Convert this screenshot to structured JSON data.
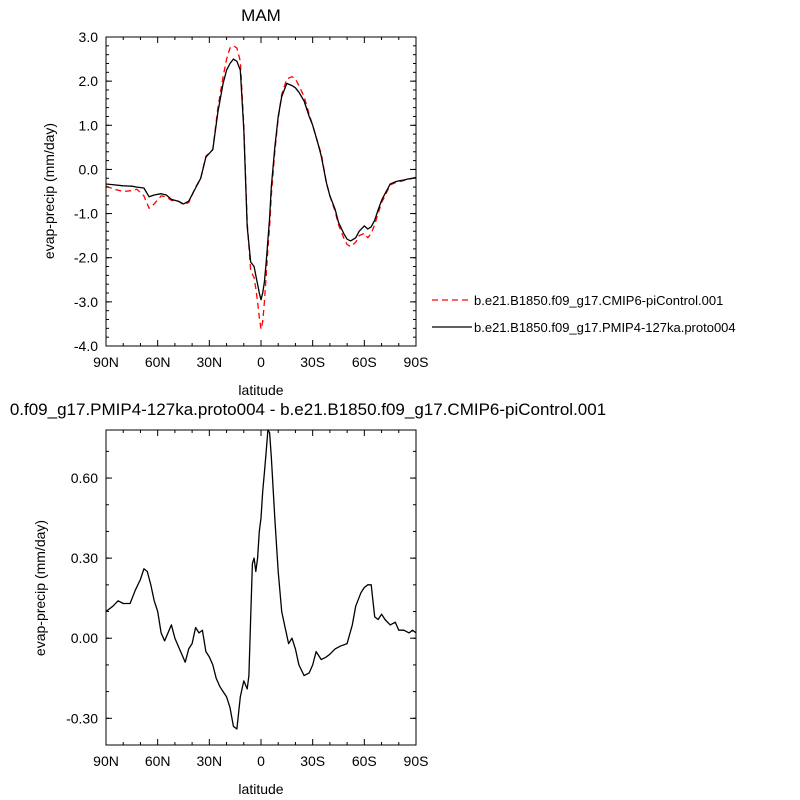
{
  "chart_data": [
    {
      "type": "line",
      "title": "MAM",
      "xlabel": "latitude",
      "ylabel": "evap-precip (mm/day)",
      "xlim": [
        90,
        -90
      ],
      "ylim": [
        -4.0,
        3.0
      ],
      "y_ticks": [
        "3.0",
        "2.0",
        "1.0",
        "0.0",
        "-1.0",
        "-2.0",
        "-3.0",
        "-4.0"
      ],
      "x_ticks": [
        "90N",
        "60N",
        "30N",
        "0",
        "30S",
        "60S",
        "90S"
      ],
      "grid": false,
      "legend_position": "right",
      "x": [
        90,
        85,
        80,
        75,
        72,
        68,
        65,
        62,
        58,
        55,
        52,
        48,
        45,
        42,
        38,
        35,
        32,
        28,
        25,
        22,
        20,
        18,
        16,
        14,
        12,
        10,
        8,
        6,
        4,
        3,
        2,
        1,
        0,
        -1,
        -2,
        -3,
        -4,
        -5,
        -6,
        -8,
        -10,
        -12,
        -15,
        -18,
        -20,
        -22,
        -25,
        -28,
        -30,
        -33,
        -35,
        -38,
        -40,
        -43,
        -45,
        -48,
        -50,
        -52,
        -55,
        -57,
        -60,
        -62,
        -64,
        -66,
        -68,
        -70,
        -72,
        -75,
        -78,
        -80,
        -83,
        -85,
        -88,
        -90
      ],
      "series": [
        {
          "name": "b.e21.B1850.f09_g17.CMIP6-piControl.001",
          "color": "#ff0000",
          "dash": "dashed",
          "values": [
            -0.38,
            -0.45,
            -0.5,
            -0.48,
            -0.45,
            -0.6,
            -0.88,
            -0.78,
            -0.6,
            -0.62,
            -0.7,
            -0.72,
            -0.8,
            -0.75,
            -0.4,
            -0.2,
            0.3,
            0.45,
            1.4,
            2.1,
            2.5,
            2.75,
            2.8,
            2.75,
            2.45,
            1.0,
            -1.2,
            -2.3,
            -2.45,
            -2.7,
            -3.0,
            -3.35,
            -3.62,
            -3.45,
            -3.0,
            -2.4,
            -1.8,
            -1.3,
            -0.6,
            0.4,
            1.15,
            1.7,
            2.05,
            2.1,
            2.05,
            1.9,
            1.65,
            1.25,
            1.0,
            0.6,
            0.35,
            -0.3,
            -0.6,
            -0.95,
            -1.25,
            -1.55,
            -1.7,
            -1.75,
            -1.65,
            -1.5,
            -1.45,
            -1.55,
            -1.45,
            -1.25,
            -1.0,
            -0.75,
            -0.6,
            -0.35,
            -0.3,
            -0.28,
            -0.25,
            -0.22,
            -0.2,
            -0.18
          ]
        },
        {
          "name": "b.e21.B1850.f09_g17.PMIP4-127ka.proto004",
          "color": "#000000",
          "dash": "solid",
          "values": [
            -0.33,
            -0.35,
            -0.37,
            -0.38,
            -0.4,
            -0.42,
            -0.62,
            -0.58,
            -0.55,
            -0.58,
            -0.68,
            -0.72,
            -0.78,
            -0.72,
            -0.42,
            -0.2,
            0.28,
            0.45,
            1.3,
            1.95,
            2.25,
            2.4,
            2.5,
            2.45,
            2.25,
            0.9,
            -1.3,
            -2.1,
            -2.2,
            -2.4,
            -2.6,
            -2.8,
            -2.95,
            -2.8,
            -2.55,
            -2.1,
            -1.6,
            -1.1,
            -0.4,
            0.5,
            1.2,
            1.65,
            1.95,
            1.9,
            1.85,
            1.75,
            1.55,
            1.2,
            1.0,
            0.6,
            0.3,
            -0.3,
            -0.6,
            -0.9,
            -1.2,
            -1.45,
            -1.58,
            -1.62,
            -1.55,
            -1.4,
            -1.28,
            -1.35,
            -1.3,
            -1.15,
            -0.92,
            -0.7,
            -0.55,
            -0.33,
            -0.28,
            -0.26,
            -0.24,
            -0.22,
            -0.2,
            -0.18
          ]
        }
      ]
    },
    {
      "type": "line",
      "title": "0.f09_g17.PMIP4-127ka.proto004 - b.e21.B1850.f09_g17.CMIP6-piControl.001",
      "xlabel": "latitude",
      "ylabel": "evap-precip (mm/day)",
      "xlim": [
        90,
        -90
      ],
      "ylim": [
        -0.4,
        0.78
      ],
      "y_ticks": [
        "0.60",
        "0.30",
        "0.00",
        "-0.30"
      ],
      "x_ticks": [
        "90N",
        "60N",
        "30N",
        "0",
        "30S",
        "60S",
        "90S"
      ],
      "grid": false,
      "x": [
        90,
        86,
        83,
        80,
        76,
        73,
        70,
        68,
        66,
        64,
        62,
        60,
        58,
        56,
        54,
        52,
        50,
        48,
        46,
        44,
        42,
        40,
        38,
        36,
        34,
        32,
        30,
        28,
        26,
        24,
        22,
        20,
        18,
        16,
        14,
        12,
        10,
        8,
        7,
        6,
        5,
        4,
        3,
        2,
        1,
        0,
        -1,
        -2,
        -3,
        -4,
        -5,
        -6,
        -8,
        -10,
        -12,
        -14,
        -16,
        -18,
        -20,
        -22,
        -25,
        -28,
        -30,
        -32,
        -35,
        -38,
        -40,
        -43,
        -46,
        -50,
        -53,
        -55,
        -58,
        -60,
        -62,
        -64,
        -66,
        -68,
        -70,
        -72,
        -75,
        -78,
        -80,
        -83,
        -86,
        -88,
        -90
      ],
      "series": [
        {
          "name": "",
          "color": "#000000",
          "dash": "solid",
          "values": [
            0.1,
            0.12,
            0.14,
            0.13,
            0.13,
            0.18,
            0.22,
            0.26,
            0.25,
            0.2,
            0.14,
            0.1,
            0.02,
            -0.01,
            0.02,
            0.05,
            0.0,
            -0.03,
            -0.06,
            -0.09,
            -0.04,
            -0.02,
            0.04,
            0.02,
            0.03,
            -0.05,
            -0.07,
            -0.1,
            -0.15,
            -0.18,
            -0.2,
            -0.22,
            -0.26,
            -0.33,
            -0.34,
            -0.22,
            -0.16,
            -0.19,
            -0.14,
            0.08,
            0.28,
            0.3,
            0.25,
            0.3,
            0.4,
            0.45,
            0.55,
            0.62,
            0.7,
            0.78,
            0.77,
            0.68,
            0.45,
            0.25,
            0.1,
            0.04,
            -0.02,
            0.0,
            -0.04,
            -0.1,
            -0.14,
            -0.13,
            -0.1,
            -0.05,
            -0.08,
            -0.07,
            -0.06,
            -0.04,
            -0.03,
            -0.02,
            0.05,
            0.12,
            0.17,
            0.19,
            0.2,
            0.2,
            0.08,
            0.07,
            0.09,
            0.07,
            0.05,
            0.06,
            0.03,
            0.03,
            0.02,
            0.03,
            0.02
          ]
        }
      ]
    }
  ]
}
